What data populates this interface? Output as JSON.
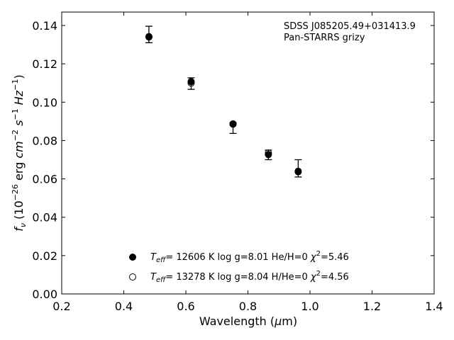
{
  "chart_data": {
    "type": "scatter",
    "title": "",
    "xlabel": {
      "main": "Wavelength (",
      "mu": "μ",
      "unit": "m)"
    },
    "ylabel": {
      "f": "f",
      "nu": "ν",
      "open": " (10",
      "e1": "−26",
      "mid": " erg ",
      "cm": "cm",
      "e2": "−2",
      "s": "s",
      "e3": "−1",
      "hz": "Hz",
      "e4": "−1",
      "close": ")"
    },
    "xlim": [
      0.2,
      1.4
    ],
    "ylim": [
      0.0,
      0.147
    ],
    "xticks": [
      0.2,
      0.4,
      0.6,
      0.8,
      1.0,
      1.2,
      1.4
    ],
    "xtick_labels": [
      "0.2",
      "0.4",
      "0.6",
      "0.8",
      "1.0",
      "1.2",
      "1.4"
    ],
    "yticks": [
      0.0,
      0.02,
      0.04,
      0.06,
      0.08,
      0.1,
      0.12,
      0.14
    ],
    "ytick_labels": [
      "0.00",
      "0.02",
      "0.04",
      "0.06",
      "0.08",
      "0.10",
      "0.12",
      "0.14"
    ],
    "annotations": [
      "SDSS J085205.49+031413.9",
      "Pan-STARRS grizy"
    ],
    "observed": {
      "x": [
        0.481,
        0.617,
        0.752,
        0.866,
        0.962
      ],
      "y": [
        0.1353,
        0.1097,
        0.0865,
        0.0725,
        0.0655
      ],
      "yerr": [
        0.0043,
        0.003,
        0.0028,
        0.0025,
        0.0045
      ]
    },
    "series": [
      {
        "marker": "filled-circle",
        "x": [
          0.481,
          0.617,
          0.752,
          0.866,
          0.962
        ],
        "y": [
          0.134,
          0.1107,
          0.0887,
          0.0727,
          0.0637
        ],
        "legend": {
          "T": "T",
          "eff": "eff",
          "rest": "= 12606 K  log g=8.01  He/H=0  ",
          "chi": "χ",
          "two": "2",
          "val": "=5.46"
        }
      },
      {
        "marker": "open-circle",
        "x": [
          0.481,
          0.617,
          0.752,
          0.866,
          0.962
        ],
        "y": [
          0.1342,
          0.11,
          0.0885,
          0.0735,
          0.064
        ],
        "legend": {
          "T": "T",
          "eff": "eff",
          "rest": "= 13278 K  log g=8.04  H/He=0  ",
          "chi": "χ",
          "two": "2",
          "val": "=4.56"
        }
      }
    ],
    "grid": false,
    "legend_position": "lower-center"
  }
}
